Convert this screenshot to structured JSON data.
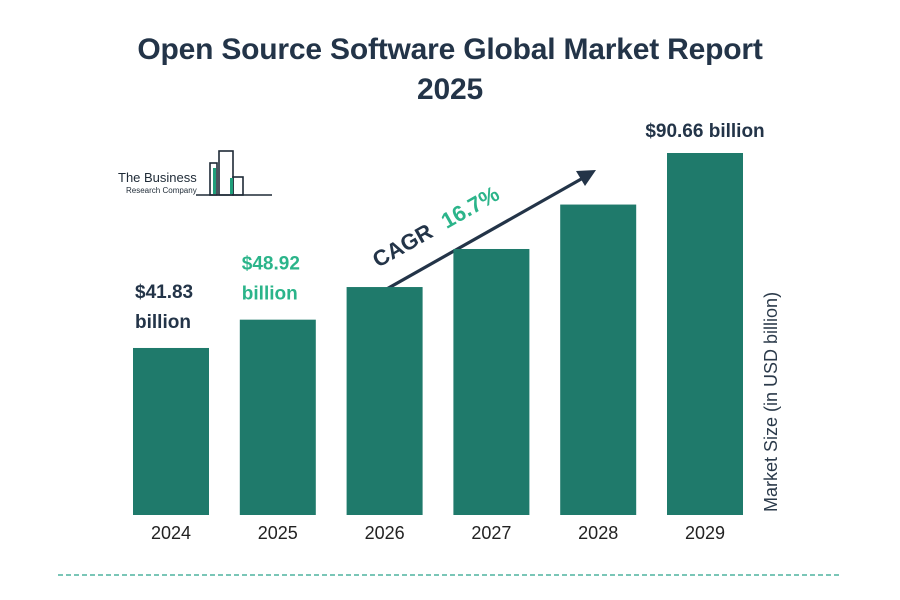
{
  "title_line1": "Open Source Software Global Market Report",
  "title_line2": "2025",
  "logo": {
    "line1": "The Business",
    "line2": "Research Company"
  },
  "cagr": {
    "prefix": "CAGR",
    "value": "16.7%"
  },
  "colors": {
    "bar": "#1f7a6b",
    "title": "#233448",
    "highlight": "#2bb48a",
    "arrow": "#233448",
    "dashed": "#2aa58c"
  },
  "chart_data": {
    "type": "bar",
    "categories": [
      "2024",
      "2025",
      "2026",
      "2027",
      "2028",
      "2029"
    ],
    "values": [
      41.83,
      48.92,
      57.09,
      66.62,
      77.75,
      90.66
    ],
    "ylabel": "Market Size (in USD billion)",
    "data_labels": [
      {
        "index": 0,
        "line1": "$41.83",
        "line2": "billion",
        "color": "#233448"
      },
      {
        "index": 1,
        "line1": "$48.92",
        "line2": "billion",
        "color": "#2bb48a"
      },
      {
        "index": 5,
        "line1": "$90.66 billion",
        "line2": "",
        "color": "#233448"
      }
    ],
    "grid": false,
    "legend": "none"
  }
}
